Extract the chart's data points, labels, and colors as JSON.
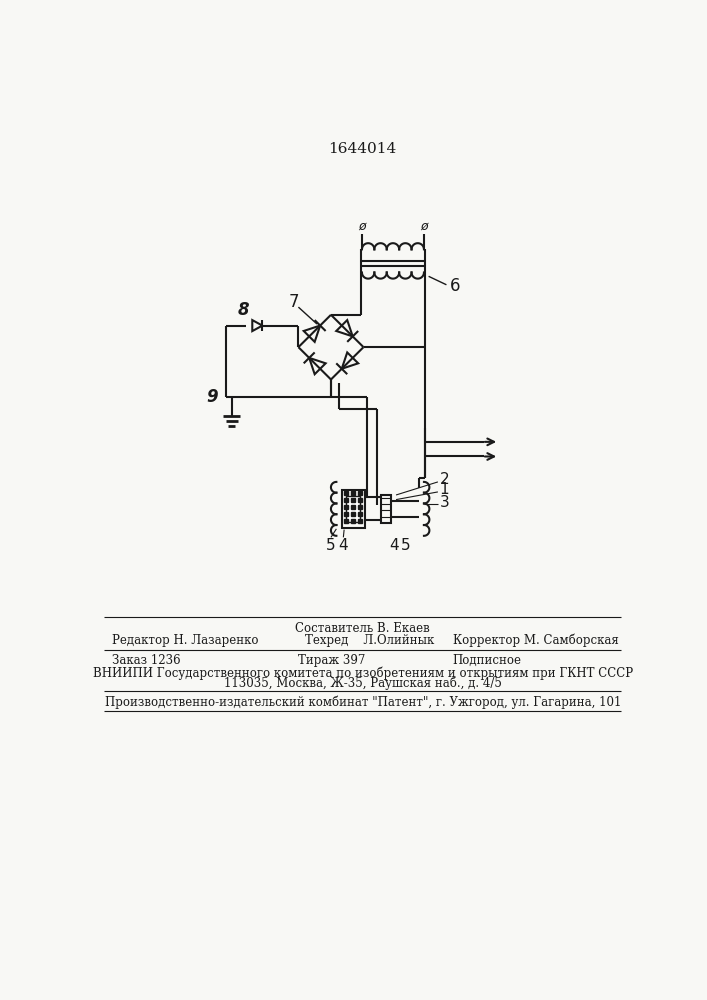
{
  "title": "1644014",
  "bg_color": "#f8f8f5",
  "line_color": "#1a1a1a",
  "label_6": "6",
  "label_7": "7",
  "label_8": "8",
  "label_9": "9",
  "label_1": "1",
  "label_2": "2",
  "label_3": "3",
  "label_4": "4",
  "label_5": "5",
  "footer_sestavitel": "Составитель В. Екаев",
  "footer_redaktor": "Редактор Н. Лазаренко",
  "footer_tehred": "Техред    Л.Олийнык",
  "footer_korrektor": "Корректор М. Самборская",
  "footer_zakaz": "Заказ 1236",
  "footer_tirazh": "Тираж 397",
  "footer_podpisnoe": "Подписное",
  "footer_vniip1": "ВНИИПИ Государственного комитета по изобретениям и открытиям при ГКНТ СССР",
  "footer_vniip2": "113035, Москва, Ж-35, Раушская наб., д. 4/5",
  "footer_patent": "Производственно-издательский комбинат \"Патент\", г. Ужгород, ул. Гагарина, 101"
}
